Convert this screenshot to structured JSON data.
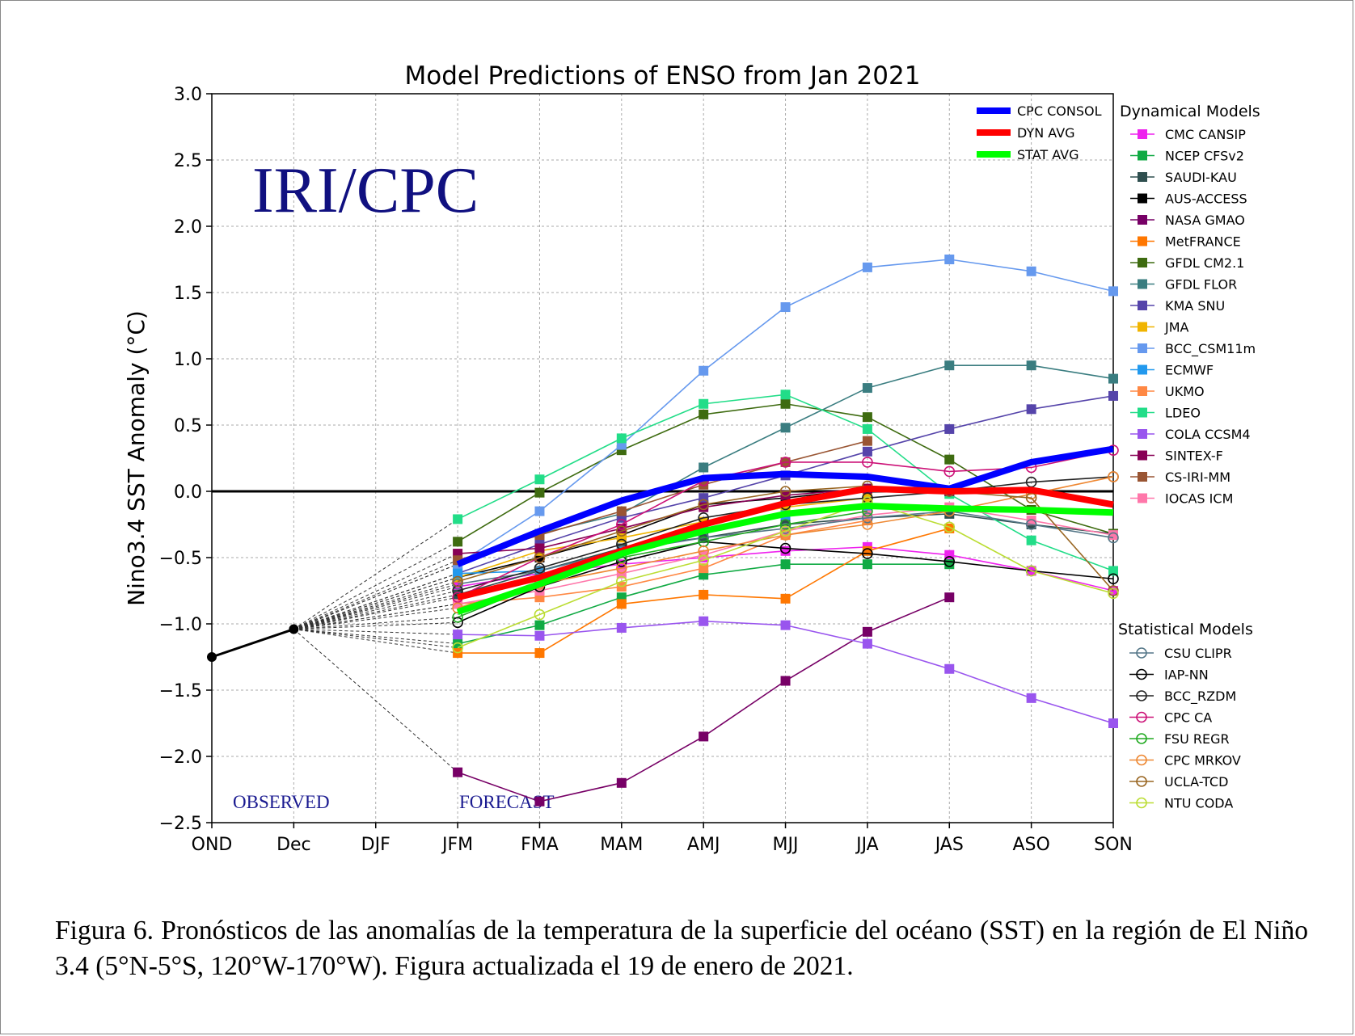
{
  "chart_data": {
    "type": "line",
    "title": "Model Predictions of ENSO from Jan 2021",
    "ylabel": "Nino3.4 SST Anomaly (°C)",
    "xlabel": "",
    "ylim": [
      -2.5,
      3.0
    ],
    "yticks": [
      "3.0",
      "2.5",
      "2.0",
      "1.5",
      "1.0",
      "0.5",
      "0.0",
      "−0.5",
      "−1.0",
      "−1.5",
      "−2.0",
      "−2.5"
    ],
    "categories": [
      "OND",
      "Dec",
      "DJF",
      "JFM",
      "FMA",
      "MAM",
      "AMJ",
      "MJJ",
      "JJA",
      "JAS",
      "ASO",
      "SON"
    ],
    "grid": true,
    "zero_line": true,
    "watermark": "IRI/CPC",
    "observed_label": "OBSERVED",
    "forecast_label": "FORECAST",
    "observed": [
      -1.25,
      -1.04
    ],
    "legend_averages": [
      {
        "name": "CPC CONSOL",
        "color": "#0000ff",
        "values": [
          -0.55,
          -0.3,
          -0.07,
          0.1,
          0.13,
          0.11,
          0.02,
          0.22,
          0.32
        ]
      },
      {
        "name": "DYN AVG",
        "color": "#ff0000",
        "values": [
          -0.8,
          -0.65,
          -0.45,
          -0.25,
          -0.09,
          0.02,
          0.0,
          0.01,
          -0.1
        ]
      },
      {
        "name": "STAT AVG",
        "color": "#00ff00",
        "values": [
          -0.91,
          -0.7,
          -0.47,
          -0.3,
          -0.17,
          -0.11,
          -0.13,
          -0.14,
          -0.16
        ]
      }
    ],
    "dynamical_title": "Dynamical Models",
    "dynamical_models": [
      {
        "name": "CMC CANSIP",
        "color": "#ee22ee",
        "values": [
          -0.72,
          -0.62,
          -0.55,
          -0.5,
          -0.45,
          -0.42,
          -0.48,
          -0.6,
          -0.75
        ]
      },
      {
        "name": "NCEP CFSv2",
        "color": "#11aa44",
        "values": [
          -1.15,
          -1.01,
          -0.8,
          -0.63,
          -0.55,
          -0.55,
          -0.55,
          null,
          null
        ]
      },
      {
        "name": "SAUDI-KAU",
        "color": "#2f4f4f",
        "values": [
          -0.78,
          -0.6,
          -0.43,
          -0.35,
          -0.25,
          -0.2,
          -0.17,
          -0.25,
          -0.32
        ]
      },
      {
        "name": "AUS-ACCESS",
        "color": "#000000",
        "values": [
          -0.65,
          -0.5,
          -0.33,
          -0.1,
          -0.05,
          0.02,
          0.0,
          null,
          null
        ]
      },
      {
        "name": "NASA GMAO",
        "color": "#770066",
        "values": [
          -2.12,
          -2.34,
          -2.2,
          -1.85,
          -1.43,
          -1.06,
          -0.8,
          null,
          null
        ]
      },
      {
        "name": "MetFRANCE",
        "color": "#ff7700",
        "values": [
          -1.22,
          -1.22,
          -0.85,
          -0.78,
          -0.81,
          -0.45,
          -0.28,
          null,
          null
        ]
      },
      {
        "name": "GFDL CM2.1",
        "color": "#3e6b10",
        "values": [
          -0.38,
          -0.01,
          0.31,
          0.58,
          0.66,
          0.56,
          0.24,
          -0.14,
          -0.32
        ]
      },
      {
        "name": "GFDL FLOR",
        "color": "#3a7d80",
        "values": [
          -0.55,
          -0.32,
          -0.17,
          0.18,
          0.48,
          0.78,
          0.95,
          0.95,
          0.85
        ]
      },
      {
        "name": "KMA SNU",
        "color": "#5544aa",
        "values": [
          -0.62,
          -0.4,
          -0.2,
          -0.05,
          0.12,
          0.3,
          0.47,
          0.62,
          0.72
        ]
      },
      {
        "name": "JMA",
        "color": "#f0b400",
        "values": [
          -0.65,
          -0.45,
          -0.35,
          -0.23,
          -0.12,
          -0.05,
          null,
          null,
          null
        ]
      },
      {
        "name": "BCC_CSM11m",
        "color": "#6699ee",
        "values": [
          -0.55,
          -0.15,
          0.35,
          0.91,
          1.39,
          1.69,
          1.75,
          1.66,
          1.51
        ]
      },
      {
        "name": "ECMWF",
        "color": "#2299ee",
        "values": [
          -0.62,
          -0.6,
          -0.45,
          -0.28,
          -0.18,
          -0.12,
          null,
          null,
          null
        ]
      },
      {
        "name": "UKMO",
        "color": "#ff8844",
        "values": [
          -0.85,
          -0.8,
          -0.72,
          -0.58,
          -0.33,
          -0.22,
          null,
          null,
          null
        ]
      },
      {
        "name": "LDEO",
        "color": "#22dd88",
        "values": [
          -0.21,
          0.09,
          0.4,
          0.66,
          0.73,
          0.47,
          -0.02,
          -0.37,
          -0.6
        ]
      },
      {
        "name": "COLA CCSM4",
        "color": "#9955ee",
        "values": [
          -1.08,
          -1.09,
          -1.03,
          -0.98,
          -1.01,
          -1.15,
          -1.34,
          -1.56,
          -1.75
        ]
      },
      {
        "name": "SINTEX-F",
        "color": "#880055",
        "values": [
          -0.47,
          -0.43,
          -0.28,
          -0.12,
          -0.03,
          0.02,
          0.0,
          null,
          null
        ]
      },
      {
        "name": "CS-IRI-MM",
        "color": "#995533",
        "values": [
          -0.52,
          -0.33,
          -0.15,
          0.05,
          0.22,
          0.38,
          null,
          null,
          null
        ]
      },
      {
        "name": "IOCAS ICM",
        "color": "#ff77aa",
        "values": [
          -0.85,
          -0.75,
          -0.62,
          -0.48,
          -0.3,
          -0.18,
          -0.12,
          -0.22,
          -0.33
        ]
      }
    ],
    "statistical_title": "Statistical Models",
    "statistical_models": [
      {
        "name": "CSU CLIPR",
        "color": "#557788",
        "values": [
          -0.7,
          -0.6,
          -0.45,
          -0.35,
          -0.28,
          -0.2,
          -0.15,
          -0.25,
          -0.35
        ]
      },
      {
        "name": "IAP-NN",
        "color": "#000000",
        "values": [
          -0.99,
          -0.72,
          -0.53,
          -0.38,
          -0.43,
          -0.47,
          -0.53,
          -0.6,
          -0.66
        ]
      },
      {
        "name": "BCC_RZDM",
        "color": "#222222",
        "values": [
          -0.75,
          -0.58,
          -0.4,
          -0.2,
          -0.1,
          -0.05,
          0.0,
          0.07,
          0.11
        ]
      },
      {
        "name": "CPC CA",
        "color": "#cc1177",
        "values": [
          -0.8,
          -0.5,
          -0.25,
          0.08,
          0.22,
          0.22,
          0.15,
          0.18,
          0.31
        ]
      },
      {
        "name": "FSU REGR",
        "color": "#22aa22",
        "values": [
          -0.95,
          -0.7,
          -0.5,
          -0.38,
          -0.25,
          -0.15,
          null,
          null,
          null
        ]
      },
      {
        "name": "CPC MRKOV",
        "color": "#ee8833",
        "values": [
          -0.88,
          -0.7,
          -0.58,
          -0.45,
          -0.33,
          -0.25,
          -0.15,
          -0.02,
          0.11
        ]
      },
      {
        "name": "UCLA-TCD",
        "color": "#996622",
        "values": [
          -0.68,
          -0.5,
          -0.3,
          -0.1,
          0.0,
          0.04,
          0.0,
          -0.05,
          -0.75
        ]
      },
      {
        "name": "NTU CODA",
        "color": "#bbdd33",
        "values": [
          -1.18,
          -0.93,
          -0.68,
          -0.52,
          -0.3,
          -0.08,
          -0.27,
          -0.6,
          -0.77
        ]
      }
    ]
  },
  "caption": "Figura 6. Pronósticos de las anomalías de la temperatura de la superficie del océano (SST) en la región de El Niño 3.4 (5°N-5°S, 120°W-170°W). Figura actualizada el 19 de enero de 2021."
}
